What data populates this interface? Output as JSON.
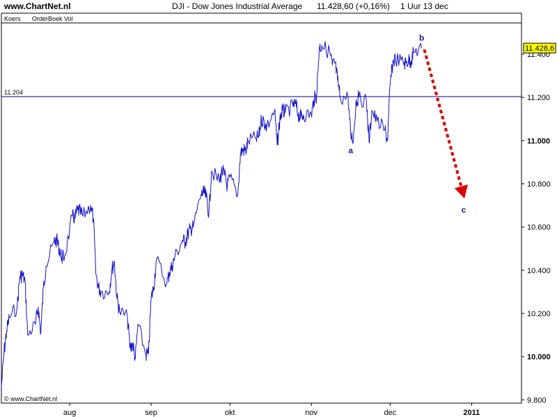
{
  "header": {
    "site": "www.ChartNet.nl",
    "instrument": "DJI - Dow Jones Industrial Average",
    "last": "11.428,60 (+0,16%)",
    "interval": "1 Uur  13 dec"
  },
  "tabs": [
    "Koers",
    "OrderBoek Vol"
  ],
  "copyright": "© www.ChartNet.nl",
  "colors": {
    "price_line": "#1212cc",
    "support_line": "#00008b",
    "arrow": "#dd0000",
    "current_price_bg": "#ffff00",
    "wave_label": "#1a1a9a"
  },
  "chart_data": {
    "type": "line",
    "title": "DJI - Dow Jones Industrial Average",
    "xlabel": "",
    "ylabel": "",
    "ylim": [
      9785,
      11590
    ],
    "y_ticks": [
      9800,
      10000,
      10200,
      10400,
      10600,
      10800,
      11000,
      11200,
      11400
    ],
    "y_tick_labels": [
      "9.800",
      "10.000",
      "10.200",
      "10.400",
      "10.600",
      "10.800",
      "11.000",
      "11.200",
      "11.400"
    ],
    "y_tick_bold": [
      false,
      true,
      false,
      false,
      false,
      false,
      true,
      false,
      false
    ],
    "x_tick_labels": [
      "aug",
      "sep",
      "okt",
      "nov",
      "dec",
      "2011"
    ],
    "x_tick_dates": [
      "2010-08-01",
      "2010-09-01",
      "2010-10-01",
      "2010-11-01",
      "2010-12-01",
      "2011-01-01"
    ],
    "x_tick_bold": [
      false,
      false,
      false,
      false,
      false,
      true
    ],
    "xlim": [
      "2010-07-06",
      "2011-01-20"
    ],
    "reference_line": {
      "value": 11204,
      "label": "11.204"
    },
    "current_price": {
      "value": 11428.6,
      "label": "11.428,6"
    },
    "series": [
      {
        "points": [
          [
            "2010-07-06",
            9860
          ],
          [
            "2010-07-07",
            10020
          ],
          [
            "2010-07-08",
            10120
          ],
          [
            "2010-07-09",
            10180
          ],
          [
            "2010-07-12",
            10230
          ],
          [
            "2010-07-13",
            10370
          ],
          [
            "2010-07-14",
            10380
          ],
          [
            "2010-07-15",
            10350
          ],
          [
            "2010-07-16",
            10100
          ],
          [
            "2010-07-19",
            10150
          ],
          [
            "2010-07-20",
            10230
          ],
          [
            "2010-07-21",
            10110
          ],
          [
            "2010-07-22",
            10320
          ],
          [
            "2010-07-23",
            10420
          ],
          [
            "2010-07-26",
            10530
          ],
          [
            "2010-07-27",
            10540
          ],
          [
            "2010-07-28",
            10500
          ],
          [
            "2010-07-29",
            10460
          ],
          [
            "2010-07-30",
            10460
          ],
          [
            "2010-08-02",
            10650
          ],
          [
            "2010-08-03",
            10640
          ],
          [
            "2010-08-04",
            10680
          ],
          [
            "2010-08-05",
            10670
          ],
          [
            "2010-08-06",
            10650
          ],
          [
            "2010-08-09",
            10700
          ],
          [
            "2010-08-10",
            10640
          ],
          [
            "2010-08-11",
            10380
          ],
          [
            "2010-08-12",
            10320
          ],
          [
            "2010-08-13",
            10300
          ],
          [
            "2010-08-16",
            10300
          ],
          [
            "2010-08-17",
            10400
          ],
          [
            "2010-08-18",
            10440
          ],
          [
            "2010-08-19",
            10270
          ],
          [
            "2010-08-20",
            10210
          ],
          [
            "2010-08-23",
            10180
          ],
          [
            "2010-08-24",
            10040
          ],
          [
            "2010-08-25",
            10060
          ],
          [
            "2010-08-26",
            9990
          ],
          [
            "2010-08-27",
            10150
          ],
          [
            "2010-08-30",
            10010
          ],
          [
            "2010-08-31",
            10010
          ],
          [
            "2010-09-01",
            10270
          ],
          [
            "2010-09-02",
            10320
          ],
          [
            "2010-09-03",
            10450
          ],
          [
            "2010-09-07",
            10340
          ],
          [
            "2010-09-08",
            10390
          ],
          [
            "2010-09-09",
            10420
          ],
          [
            "2010-09-10",
            10460
          ],
          [
            "2010-09-13",
            10540
          ],
          [
            "2010-09-14",
            10530
          ],
          [
            "2010-09-15",
            10570
          ],
          [
            "2010-09-16",
            10590
          ],
          [
            "2010-09-17",
            10600
          ],
          [
            "2010-09-20",
            10750
          ],
          [
            "2010-09-21",
            10760
          ],
          [
            "2010-09-22",
            10740
          ],
          [
            "2010-09-23",
            10660
          ],
          [
            "2010-09-24",
            10860
          ],
          [
            "2010-09-27",
            10810
          ],
          [
            "2010-09-28",
            10860
          ],
          [
            "2010-09-29",
            10840
          ],
          [
            "2010-09-30",
            10790
          ],
          [
            "2010-10-01",
            10830
          ],
          [
            "2010-10-04",
            10750
          ],
          [
            "2010-10-05",
            10940
          ],
          [
            "2010-10-06",
            10960
          ],
          [
            "2010-10-07",
            10950
          ],
          [
            "2010-10-08",
            11000
          ],
          [
            "2010-10-11",
            11010
          ],
          [
            "2010-10-12",
            11020
          ],
          [
            "2010-10-13",
            11100
          ],
          [
            "2010-10-14",
            11090
          ],
          [
            "2010-10-15",
            11060
          ],
          [
            "2010-10-18",
            11140
          ],
          [
            "2010-10-19",
            10980
          ],
          [
            "2010-10-20",
            11100
          ],
          [
            "2010-10-21",
            11140
          ],
          [
            "2010-10-22",
            11130
          ],
          [
            "2010-10-25",
            11160
          ],
          [
            "2010-10-26",
            11170
          ],
          [
            "2010-10-27",
            11120
          ],
          [
            "2010-10-28",
            11110
          ],
          [
            "2010-10-29",
            11120
          ],
          [
            "2010-11-01",
            11120
          ],
          [
            "2010-11-02",
            11190
          ],
          [
            "2010-11-03",
            11210
          ],
          [
            "2010-11-04",
            11430
          ],
          [
            "2010-11-05",
            11440
          ],
          [
            "2010-11-08",
            11410
          ],
          [
            "2010-11-09",
            11350
          ],
          [
            "2010-11-10",
            11360
          ],
          [
            "2010-11-11",
            11280
          ],
          [
            "2010-11-12",
            11200
          ],
          [
            "2010-11-15",
            11200
          ],
          [
            "2010-11-16",
            11020
          ],
          [
            "2010-11-17",
            11010
          ],
          [
            "2010-11-18",
            11180
          ],
          [
            "2010-11-19",
            11200
          ],
          [
            "2010-11-22",
            11180
          ],
          [
            "2010-11-23",
            10990
          ],
          [
            "2010-11-24",
            11140
          ],
          [
            "2010-11-26",
            11090
          ],
          [
            "2010-11-29",
            11050
          ],
          [
            "2010-11-30",
            11000
          ],
          [
            "2010-12-01",
            11260
          ],
          [
            "2010-12-02",
            11360
          ],
          [
            "2010-12-03",
            11380
          ],
          [
            "2010-12-06",
            11360
          ],
          [
            "2010-12-07",
            11360
          ],
          [
            "2010-12-08",
            11370
          ],
          [
            "2010-12-09",
            11370
          ],
          [
            "2010-12-10",
            11410
          ],
          [
            "2010-12-13",
            11428.6
          ]
        ]
      }
    ],
    "annotations": [
      {
        "label": "a",
        "date": "2010-11-16",
        "value": 10955
      },
      {
        "label": "b",
        "date": "2010-12-13",
        "value": 11475
      },
      {
        "label": "c",
        "date": "2010-12-29",
        "value": 10680
      }
    ],
    "projection": {
      "from": [
        "2010-12-14",
        11422
      ],
      "to": [
        "2010-12-29",
        10745
      ]
    },
    "grid": false,
    "legend": "none"
  }
}
